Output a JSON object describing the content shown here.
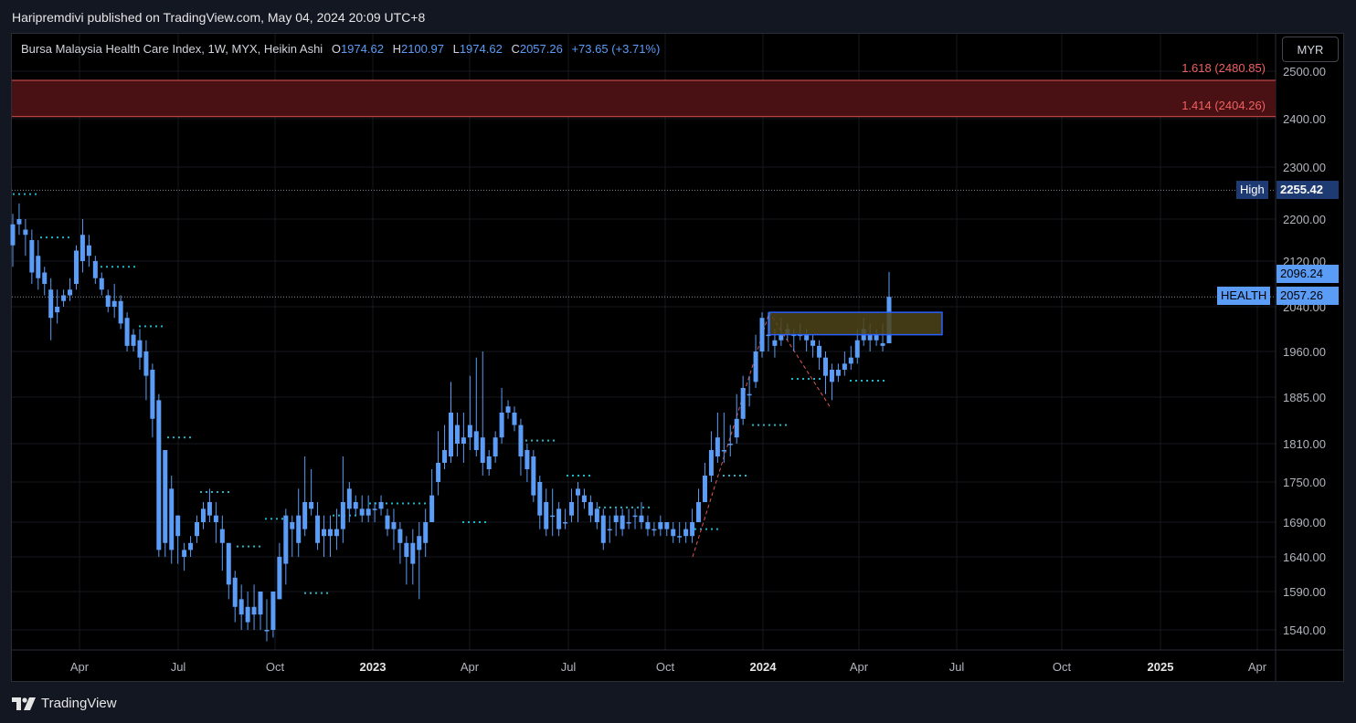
{
  "header": {
    "publish_text": "Haripremdivi published on TradingView.com, May 04, 2024 20:09 UTC+8"
  },
  "legend": {
    "symbol": "Bursa Malaysia Health Care Index, 1W, MYX, Heikin Ashi",
    "open_label": "O",
    "open": "1974.62",
    "high_label": "H",
    "high": "2100.97",
    "low_label": "L",
    "low": "1974.62",
    "close_label": "C",
    "close": "2057.26",
    "change": "+73.65 (+3.71%)"
  },
  "currency_button": "MYR",
  "footer": {
    "brand": "TradingView"
  },
  "colors": {
    "candle": "#5b9cf6",
    "zone": "#4a1114",
    "zone_line": "#e05555",
    "box_fill": "#4d4418",
    "box_stroke": "#2962ff",
    "dots": "#22b5c6",
    "fib_line": "#e05555"
  },
  "chart_data": {
    "type": "candlestick",
    "title": "Bursa Malaysia Health Care Index",
    "interval": "1W",
    "style": "Heikin Ashi",
    "y_ticks": [
      "2500.00",
      "2400.00",
      "2300.00",
      "2200.00",
      "2120.00",
      "2040.00",
      "1960.00",
      "1885.00",
      "1810.00",
      "1750.00",
      "1690.00",
      "1640.00",
      "1590.00",
      "1540.00"
    ],
    "x_ticks": [
      "Apr",
      "Jul",
      "Oct",
      "2023",
      "Apr",
      "Jul",
      "Oct",
      "2024",
      "Apr",
      "Jul",
      "Oct",
      "2025",
      "Apr"
    ],
    "x_ticks_bold": [
      "2023",
      "2024",
      "2025"
    ],
    "fib_levels": [
      {
        "label": "1.618 (2480.85)",
        "value": 2480.85
      },
      {
        "label": "1.414 (2404.26)",
        "value": 2404.26
      }
    ],
    "price_tags": {
      "high_label": "High",
      "high_value": "2255.42",
      "last_high": "2096.24",
      "symbol_label": "HEALTH",
      "last_close": "2057.26"
    },
    "y_anchor": [
      [
        2500,
        78
      ],
      [
        2400,
        130
      ],
      [
        2300,
        183
      ],
      [
        2200,
        240
      ],
      [
        2120,
        286
      ],
      [
        2040,
        336
      ],
      [
        1960,
        385
      ],
      [
        1885,
        435
      ],
      [
        1810,
        486
      ],
      [
        1750,
        528
      ],
      [
        1690,
        572
      ],
      [
        1640,
        610
      ],
      [
        1590,
        648
      ],
      [
        1540,
        690
      ]
    ],
    "candles": [
      [
        2190,
        2150,
        2210,
        2110
      ],
      [
        2200,
        2190,
        2230,
        2170
      ],
      [
        2170,
        2180,
        2200,
        2130
      ],
      [
        2100,
        2160,
        2180,
        2080
      ],
      [
        2090,
        2130,
        2160,
        2070
      ],
      [
        2080,
        2100,
        2110,
        2060
      ],
      [
        2020,
        2070,
        2090,
        1980
      ],
      [
        2040,
        2030,
        2070,
        2010
      ],
      [
        2060,
        2050,
        2070,
        2040
      ],
      [
        2070,
        2060,
        2090,
        2050
      ],
      [
        2140,
        2080,
        2150,
        2070
      ],
      [
        2170,
        2120,
        2200,
        2100
      ],
      [
        2130,
        2150,
        2170,
        2110
      ],
      [
        2090,
        2120,
        2130,
        2080
      ],
      [
        2070,
        2090,
        2100,
        2060
      ],
      [
        2040,
        2060,
        2070,
        2030
      ],
      [
        2040,
        2050,
        2080,
        2020
      ],
      [
        2010,
        2050,
        2060,
        2000
      ],
      [
        1970,
        2020,
        2030,
        1960
      ],
      [
        1970,
        1990,
        2000,
        1960
      ],
      [
        1950,
        1980,
        2000,
        1930
      ],
      [
        1920,
        1960,
        1980,
        1880
      ],
      [
        1850,
        1930,
        1940,
        1820
      ],
      [
        1650,
        1880,
        1890,
        1640
      ],
      [
        1660,
        1800,
        1800,
        1640
      ],
      [
        1650,
        1740,
        1760,
        1630
      ],
      [
        1670,
        1700,
        1700,
        1630
      ],
      [
        1650,
        1640,
        1660,
        1620
      ],
      [
        1660,
        1650,
        1670,
        1640
      ],
      [
        1690,
        1670,
        1700,
        1660
      ],
      [
        1710,
        1690,
        1720,
        1680
      ],
      [
        1720,
        1700,
        1740,
        1690
      ],
      [
        1700,
        1690,
        1720,
        1660
      ],
      [
        1660,
        1680,
        1700,
        1620
      ],
      [
        1600,
        1660,
        1660,
        1580
      ],
      [
        1570,
        1610,
        1620,
        1550
      ],
      [
        1560,
        1580,
        1600,
        1540
      ],
      [
        1550,
        1570,
        1590,
        1540
      ],
      [
        1560,
        1570,
        1600,
        1540
      ],
      [
        1560,
        1590,
        1590,
        1540
      ],
      [
        1540,
        1540,
        1580,
        1525
      ],
      [
        1590,
        1540,
        1590,
        1530
      ],
      [
        1640,
        1580,
        1660,
        1580
      ],
      [
        1700,
        1630,
        1710,
        1600
      ],
      [
        1680,
        1690,
        1700,
        1640
      ],
      [
        1700,
        1660,
        1740,
        1640
      ],
      [
        1720,
        1680,
        1790,
        1670
      ],
      [
        1710,
        1720,
        1770,
        1700
      ],
      [
        1660,
        1700,
        1720,
        1650
      ],
      [
        1680,
        1670,
        1700,
        1640
      ],
      [
        1680,
        1670,
        1700,
        1640
      ],
      [
        1680,
        1670,
        1710,
        1650
      ],
      [
        1720,
        1680,
        1790,
        1660
      ],
      [
        1740,
        1710,
        1750,
        1690
      ],
      [
        1710,
        1720,
        1730,
        1700
      ],
      [
        1700,
        1710,
        1730,
        1690
      ],
      [
        1710,
        1700,
        1730,
        1690
      ],
      [
        1710,
        1710,
        1720,
        1690
      ],
      [
        1720,
        1710,
        1730,
        1700
      ],
      [
        1680,
        1700,
        1710,
        1670
      ],
      [
        1680,
        1690,
        1710,
        1650
      ],
      [
        1660,
        1680,
        1690,
        1630
      ],
      [
        1640,
        1660,
        1670,
        1600
      ],
      [
        1630,
        1660,
        1680,
        1600
      ],
      [
        1650,
        1670,
        1690,
        1580
      ],
      [
        1690,
        1660,
        1710,
        1640
      ],
      [
        1730,
        1690,
        1770,
        1710
      ],
      [
        1780,
        1750,
        1830,
        1730
      ],
      [
        1800,
        1780,
        1840,
        1770
      ],
      [
        1860,
        1790,
        1910,
        1780
      ],
      [
        1810,
        1840,
        1860,
        1790
      ],
      [
        1810,
        1820,
        1860,
        1780
      ],
      [
        1840,
        1820,
        1920,
        1800
      ],
      [
        1800,
        1830,
        1950,
        1790
      ],
      [
        1780,
        1820,
        1960,
        1760
      ],
      [
        1770,
        1790,
        1800,
        1760
      ],
      [
        1820,
        1790,
        1830,
        1780
      ],
      [
        1860,
        1820,
        1900,
        1810
      ],
      [
        1860,
        1870,
        1880,
        1850
      ],
      [
        1840,
        1860,
        1870,
        1830
      ],
      [
        1790,
        1840,
        1850,
        1760
      ],
      [
        1770,
        1800,
        1810,
        1750
      ],
      [
        1730,
        1790,
        1800,
        1720
      ],
      [
        1700,
        1750,
        1760,
        1680
      ],
      [
        1680,
        1720,
        1740,
        1670
      ],
      [
        1700,
        1700,
        1740,
        1670
      ],
      [
        1680,
        1710,
        1720,
        1670
      ],
      [
        1690,
        1690,
        1710,
        1680
      ],
      [
        1720,
        1700,
        1740,
        1690
      ],
      [
        1740,
        1730,
        1750,
        1690
      ],
      [
        1720,
        1730,
        1740,
        1710
      ],
      [
        1700,
        1720,
        1730,
        1690
      ],
      [
        1690,
        1710,
        1720,
        1680
      ],
      [
        1660,
        1700,
        1710,
        1650
      ],
      [
        1680,
        1680,
        1700,
        1660
      ],
      [
        1700,
        1690,
        1710,
        1670
      ],
      [
        1680,
        1700,
        1710,
        1670
      ],
      [
        1690,
        1690,
        1710,
        1680
      ],
      [
        1700,
        1700,
        1710,
        1680
      ],
      [
        1690,
        1700,
        1720,
        1680
      ],
      [
        1680,
        1690,
        1700,
        1670
      ],
      [
        1680,
        1680,
        1690,
        1670
      ],
      [
        1690,
        1680,
        1700,
        1670
      ],
      [
        1680,
        1690,
        1690,
        1670
      ],
      [
        1670,
        1680,
        1690,
        1660
      ],
      [
        1670,
        1670,
        1690,
        1660
      ],
      [
        1680,
        1670,
        1690,
        1660
      ],
      [
        1690,
        1670,
        1710,
        1660
      ],
      [
        1720,
        1690,
        1740,
        1690
      ],
      [
        1760,
        1720,
        1780,
        1720
      ],
      [
        1800,
        1760,
        1830,
        1750
      ],
      [
        1820,
        1790,
        1860,
        1780
      ],
      [
        1800,
        1800,
        1860,
        1780
      ],
      [
        1810,
        1810,
        1840,
        1790
      ],
      [
        1850,
        1820,
        1890,
        1810
      ],
      [
        1900,
        1850,
        1920,
        1840
      ],
      [
        1890,
        1890,
        1920,
        1870
      ],
      [
        1960,
        1910,
        1990,
        1900
      ],
      [
        2020,
        1960,
        2030,
        1950
      ],
      [
        1990,
        1990,
        2030,
        1960
      ],
      [
        1970,
        1980,
        2000,
        1950
      ],
      [
        1980,
        1990,
        2020,
        1970
      ],
      [
        2000,
        1990,
        2010,
        1980
      ],
      [
        1990,
        1990,
        2000,
        1960
      ],
      [
        1990,
        1990,
        2010,
        1980
      ],
      [
        1980,
        1990,
        2000,
        1960
      ],
      [
        1970,
        1980,
        1990,
        1950
      ],
      [
        1950,
        1970,
        1980,
        1930
      ],
      [
        1920,
        1950,
        1960,
        1890
      ],
      [
        1910,
        1930,
        1940,
        1880
      ],
      [
        1930,
        1920,
        1940,
        1910
      ],
      [
        1940,
        1930,
        1960,
        1920
      ],
      [
        1950,
        1940,
        1970,
        1930
      ],
      [
        1980,
        1950,
        2000,
        1940
      ],
      [
        2000,
        1980,
        2020,
        1970
      ],
      [
        1980,
        1990,
        2010,
        1960
      ],
      [
        1990,
        1980,
        2000,
        1970
      ],
      [
        1970,
        1974.62,
        2010,
        1960
      ],
      [
        2057.26,
        1974.62,
        2100.97,
        1974.62
      ]
    ]
  }
}
